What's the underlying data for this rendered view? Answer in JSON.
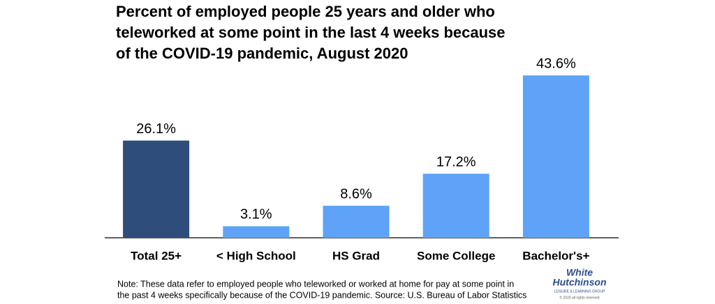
{
  "chart_data": {
    "type": "bar",
    "title": [
      "Percent of employed people 25 years and older who",
      "teleworked at some point in the last 4 weeks because",
      "of the COVID-19 pandemic, August 2020"
    ],
    "categories": [
      "Total 25+",
      "< High School",
      "HS Grad",
      "Some College",
      "Bachelor's+"
    ],
    "values": [
      26.1,
      3.1,
      8.6,
      17.2,
      43.6
    ],
    "value_labels": [
      "26.1%",
      "3.1%",
      "8.6%",
      "17.2%",
      "43.6%"
    ],
    "colors": [
      "#2e4d7b",
      "#5ea3f7",
      "#5ea3f7",
      "#5ea3f7",
      "#5ea3f7"
    ],
    "note": [
      "Note: These data refer to employed people who teleworked or worked at home for pay at some point in",
      "the past 4 weeks specifically because of the COVID-19 pandemic. Source: U.S. Bureau of Labor Statistics"
    ]
  },
  "logo": {
    "line1": "White",
    "line2": "Hutchinson",
    "tagline": "LEISURE & LEARNING GROUP",
    "copyright": "© 2020 all rights reserved"
  }
}
